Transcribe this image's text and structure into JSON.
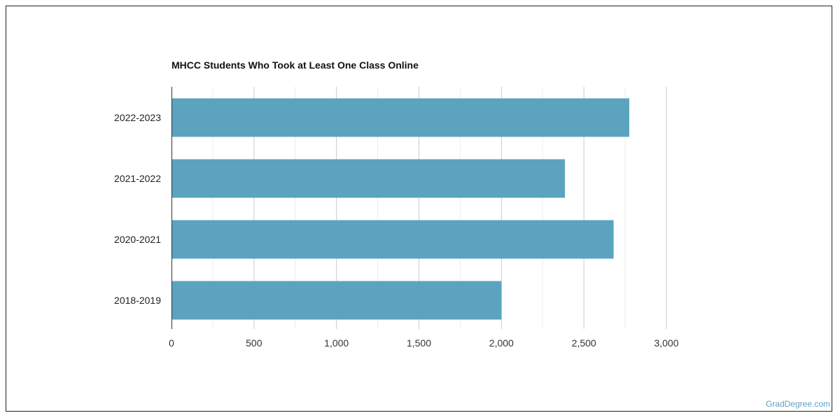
{
  "chart_data": {
    "type": "bar",
    "orientation": "horizontal",
    "title": "MHCC Students Who Took at Least One Class Online",
    "categories": [
      "2022-2023",
      "2021-2022",
      "2020-2021",
      "2018-2019"
    ],
    "values": [
      2775,
      2385,
      2680,
      2000
    ],
    "xlim": [
      0,
      3000
    ],
    "xticks": [
      0,
      500,
      1000,
      1500,
      2000,
      2500,
      3000
    ],
    "xtick_labels": [
      "0",
      "500",
      "1,000",
      "1,500",
      "2,000",
      "2,500",
      "3,000"
    ],
    "grid": true,
    "bar_color": "#5ba3bf",
    "xlabel": "",
    "ylabel": ""
  },
  "watermark": "GradDegree.com"
}
